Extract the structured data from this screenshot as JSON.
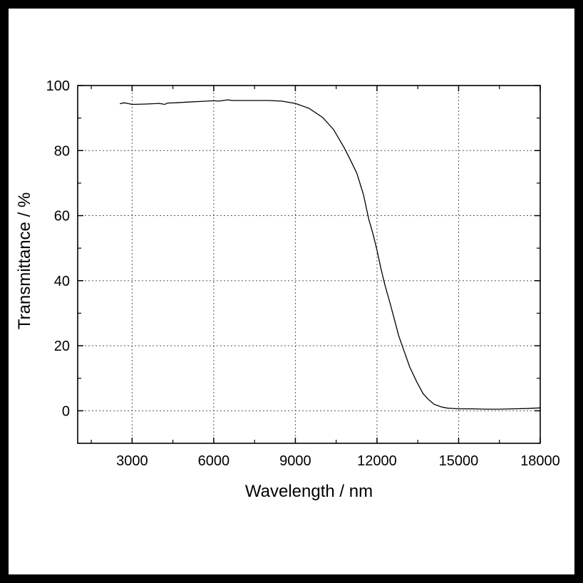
{
  "chart_data": {
    "type": "line",
    "title": "",
    "xlabel": "Wavelength / nm",
    "ylabel": "Transmittance / %",
    "xlim": [
      1000,
      18000
    ],
    "ylim": [
      -10,
      100
    ],
    "xticks": [
      3000,
      6000,
      9000,
      12000,
      15000,
      18000
    ],
    "yticks": [
      0,
      20,
      40,
      60,
      80,
      100
    ],
    "grid": true,
    "series": [
      {
        "name": "Transmittance",
        "color": "#000000",
        "x": [
          2550,
          2700,
          2900,
          3000,
          3500,
          4000,
          4200,
          4300,
          4600,
          5000,
          5500,
          6000,
          6200,
          6500,
          6700,
          7000,
          7500,
          8000,
          8500,
          9000,
          9500,
          10000,
          10400,
          10800,
          11000,
          11260,
          11500,
          11700,
          11850,
          12000,
          12150,
          12300,
          12500,
          12660,
          12800,
          13000,
          13200,
          13460,
          13700,
          13900,
          14100,
          14360,
          14600,
          15000,
          15500,
          16000,
          16500,
          17000,
          17500,
          18000
        ],
        "y": [
          94.4,
          94.7,
          94.4,
          94.2,
          94.3,
          94.5,
          94.2,
          94.6,
          94.7,
          94.9,
          95.1,
          95.3,
          95.2,
          95.6,
          95.4,
          95.4,
          95.4,
          95.4,
          95.2,
          94.5,
          93.0,
          90.2,
          86.5,
          80.8,
          77.5,
          73.0,
          66.5,
          58.8,
          54.5,
          49.4,
          43.5,
          38.4,
          32.5,
          27.5,
          23.0,
          18.3,
          13.5,
          8.9,
          5.2,
          3.4,
          2.0,
          1.2,
          0.8,
          0.6,
          0.6,
          0.5,
          0.5,
          0.6,
          0.7,
          0.9
        ]
      }
    ]
  }
}
